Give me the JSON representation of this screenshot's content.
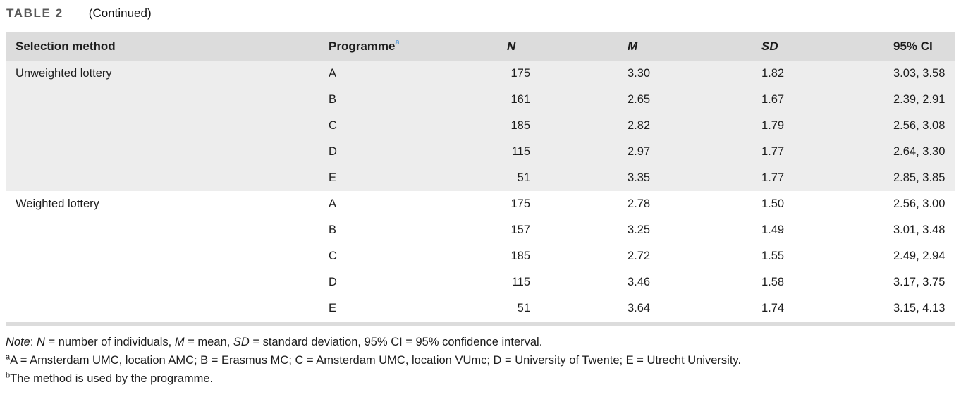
{
  "caption": {
    "label": "TABLE 2",
    "continued": "(Continued)"
  },
  "table": {
    "headers": {
      "selection_method": "Selection method",
      "programme": "Programme",
      "programme_marker": "a",
      "n": "N",
      "m": "M",
      "sd": "SD",
      "ci": "95% CI"
    },
    "groups": [
      {
        "method": "Unweighted lottery",
        "rows": [
          {
            "programme": "A",
            "n": "175",
            "m": "3.30",
            "sd": "1.82",
            "ci": "3.03, 3.58"
          },
          {
            "programme": "B",
            "n": "161",
            "m": "2.65",
            "sd": "1.67",
            "ci": "2.39, 2.91"
          },
          {
            "programme": "C",
            "n": "185",
            "m": "2.82",
            "sd": "1.79",
            "ci": "2.56, 3.08"
          },
          {
            "programme": "D",
            "n": "115",
            "m": "2.97",
            "sd": "1.77",
            "ci": "2.64, 3.30"
          },
          {
            "programme": "E",
            "n": "51",
            "m": "3.35",
            "sd": "1.77",
            "ci": "2.85, 3.85"
          }
        ]
      },
      {
        "method": "Weighted lottery",
        "rows": [
          {
            "programme": "A",
            "n": "175",
            "m": "2.78",
            "sd": "1.50",
            "ci": "2.56, 3.00"
          },
          {
            "programme": "B",
            "n": "157",
            "m": "3.25",
            "sd": "1.49",
            "ci": "3.01, 3.48"
          },
          {
            "programme": "C",
            "n": "185",
            "m": "2.72",
            "sd": "1.55",
            "ci": "2.49, 2.94"
          },
          {
            "programme": "D",
            "n": "115",
            "m": "3.46",
            "sd": "1.58",
            "ci": "3.17, 3.75"
          },
          {
            "programme": "E",
            "n": "51",
            "m": "3.64",
            "sd": "1.74",
            "ci": "3.15, 4.13"
          }
        ]
      }
    ]
  },
  "footnotes": {
    "note": [
      {
        "t": "Note",
        "i": true
      },
      {
        "t": ": ",
        "i": false
      },
      {
        "t": "N",
        "i": true
      },
      {
        "t": " = number of individuals, ",
        "i": false
      },
      {
        "t": "M",
        "i": true
      },
      {
        "t": " = mean, ",
        "i": false
      },
      {
        "t": "SD",
        "i": true
      },
      {
        "t": " = standard deviation, 95% CI = 95% confidence interval.",
        "i": false
      }
    ],
    "a": {
      "marker": "a",
      "text": "A = Amsterdam UMC, location AMC; B = Erasmus MC; C = Amsterdam UMC, location VUmc; D = University of Twente; E = Utrecht University."
    },
    "b": {
      "marker": "b",
      "text": "The method is used by the programme."
    }
  },
  "colors": {
    "header_row_bg": "#dcdcdc",
    "band_row_bg": "#ededed",
    "caption_label": "#595959",
    "footnote_marker_blue": "#5b9bd5",
    "text": "#1c1c1c"
  }
}
